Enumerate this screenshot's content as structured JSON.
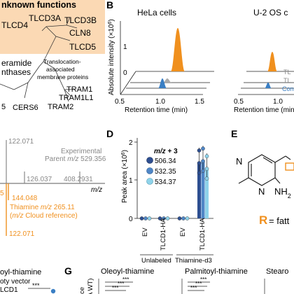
{
  "panel_a": {
    "header": "nknown functions",
    "family": [
      "TLCD4",
      "TLCD3A",
      "TLCD3B",
      "CLN8",
      "TLCD5"
    ],
    "left_labels": [
      "eramide",
      "nthases"
    ],
    "group_label_1": "Translocation-",
    "group_label_2": "associated",
    "group_label_3": "membrane proteins",
    "tram": [
      "TRAM1",
      "TRAM1L1",
      "TRAM2"
    ],
    "cers": [
      "5",
      "CERS6"
    ]
  },
  "panel_b": {
    "letter": "B",
    "left_title": "HeLa cells",
    "right_title": "U-2 OS c",
    "ylabel": "Absolute intensity (×10",
    "ylabel_exp": "6",
    "ylabel_end": ")",
    "y_ticks": [
      "1",
      "0"
    ],
    "x_ticks_left": [
      "0.5",
      "1.0",
      "1.5"
    ],
    "x_ticks_right": [
      "0.5",
      "1.0"
    ],
    "xlabel": "Retention time (min)",
    "right_labels": [
      "TL",
      "TL",
      "Con"
    ]
  },
  "panel_c": {
    "top_values": [
      "122.071",
      "126.037",
      "408.2931"
    ],
    "experimental": "Experimental",
    "parent_prefix": "Parent ",
    "parent_mz": "m/z",
    "parent_value": " 529.356",
    "axis_label": "m/z",
    "left_frag": "5",
    "bottom_values": [
      "144.048",
      "122.071"
    ],
    "thiamine_prefix": "Thiamine ",
    "thiamine_mz": "m/z",
    "thiamine_value": " 265.11",
    "cloud_open": "(",
    "cloud_mz": "m/z",
    "cloud_text": " Cloud reference)"
  },
  "panel_d": {
    "letter": "D",
    "ylabel": "Peak area (×10",
    "ylabel_exp": "6",
    "ylabel_end": ")",
    "y_ticks": [
      "2",
      "1",
      "0"
    ],
    "legend_title_prefix": "m/z",
    "legend_title_suffix": " + 3",
    "legend": [
      {
        "label": "506.34",
        "color": "#2e4f91"
      },
      {
        "label": "532.35",
        "color": "#4f86c6"
      },
      {
        "label": "534.37",
        "color": "#8fd3ea"
      }
    ],
    "x_groups": [
      "EV",
      "TLCD1-HA",
      "EV",
      "TLCD1-HA"
    ],
    "group_labels": [
      "Unlabeled",
      "Thiamine-d3"
    ],
    "chart_data": {
      "type": "bar",
      "categories": [
        "EV (Unlabeled)",
        "TLCD1-HA (Unlabeled)",
        "EV (Thiamine-d3)",
        "TLCD1-HA (Thiamine-d3)"
      ],
      "series": [
        {
          "name": "506.34",
          "values": [
            0.0,
            0.0,
            0.0,
            1.45
          ]
        },
        {
          "name": "532.35",
          "values": [
            0.0,
            0.0,
            0.0,
            1.5
          ]
        },
        {
          "name": "534.37",
          "values": [
            0.0,
            0.0,
            0.0,
            1.3
          ]
        }
      ],
      "ylim": [
        0,
        2.2
      ]
    }
  },
  "panel_e": {
    "letter": "E",
    "atom_n": "N",
    "atom_nh2": "NH",
    "atom_nh2_sub": "2",
    "r_letter": "R",
    "r_text": " = fatt"
  },
  "bottom": {
    "left_title": "oyl-thiamine",
    "left_sub1": "oty vector",
    "left_sub2": "LCD1",
    "g_letter": "G",
    "g_titles": [
      "Oleoyl-thiamine",
      "Palmitoyl-thiamine",
      "Stearo"
    ],
    "side_label_1": "ce",
    "side_label_2": "A WT)",
    "sig": "***"
  },
  "colors": {
    "orange": "#f0901e",
    "blue": "#3a7fc4",
    "light_blue": "#8fd3ea",
    "grey": "#9a9a9a",
    "highlight": "#fbd9b4"
  }
}
